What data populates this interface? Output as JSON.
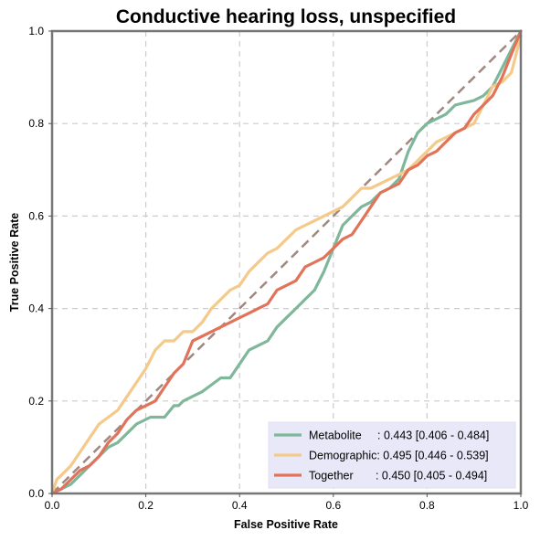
{
  "chart_data": {
    "type": "line",
    "title": "Conductive hearing loss, unspecified",
    "xlabel": "False Positive Rate",
    "ylabel": "True Positive Rate",
    "xlim": [
      0,
      1
    ],
    "ylim": [
      0,
      1
    ],
    "x_ticks": [
      "0.0",
      "0.2",
      "0.4",
      "0.6",
      "0.8",
      "1.0"
    ],
    "y_ticks": [
      "0.0",
      "0.2",
      "0.4",
      "0.6",
      "0.8",
      "1.0"
    ],
    "grid": true,
    "legend_position": "bottom-right",
    "diagonal": {
      "x": [
        0,
        1
      ],
      "y": [
        0,
        1
      ],
      "color": "#a08880"
    },
    "series": [
      {
        "name": "Metabolite",
        "label": "Metabolite     : 0.443 [0.406 - 0.484]",
        "color": "#7fb79a",
        "x": [
          0,
          0.02,
          0.04,
          0.06,
          0.08,
          0.1,
          0.12,
          0.14,
          0.16,
          0.18,
          0.2,
          0.21,
          0.22,
          0.24,
          0.26,
          0.27,
          0.28,
          0.3,
          0.32,
          0.34,
          0.36,
          0.38,
          0.4,
          0.42,
          0.44,
          0.46,
          0.48,
          0.5,
          0.52,
          0.54,
          0.56,
          0.58,
          0.6,
          0.62,
          0.64,
          0.66,
          0.68,
          0.7,
          0.72,
          0.74,
          0.76,
          0.78,
          0.8,
          0.82,
          0.84,
          0.86,
          0.88,
          0.9,
          0.92,
          0.94,
          0.96,
          0.98,
          1.0
        ],
        "y": [
          0,
          0.01,
          0.02,
          0.04,
          0.06,
          0.08,
          0.1,
          0.11,
          0.13,
          0.15,
          0.16,
          0.165,
          0.165,
          0.165,
          0.19,
          0.19,
          0.2,
          0.21,
          0.22,
          0.235,
          0.25,
          0.25,
          0.28,
          0.31,
          0.32,
          0.33,
          0.36,
          0.38,
          0.4,
          0.42,
          0.44,
          0.48,
          0.53,
          0.58,
          0.6,
          0.62,
          0.63,
          0.65,
          0.66,
          0.68,
          0.74,
          0.78,
          0.8,
          0.81,
          0.82,
          0.84,
          0.845,
          0.85,
          0.86,
          0.88,
          0.92,
          0.96,
          1.0
        ]
      },
      {
        "name": "Demographic",
        "label": "Demographic: 0.495 [0.446 - 0.539]",
        "color": "#f4c98a",
        "x": [
          0,
          0.01,
          0.02,
          0.04,
          0.06,
          0.08,
          0.1,
          0.12,
          0.14,
          0.16,
          0.18,
          0.2,
          0.22,
          0.24,
          0.26,
          0.28,
          0.3,
          0.32,
          0.34,
          0.36,
          0.38,
          0.4,
          0.42,
          0.44,
          0.46,
          0.48,
          0.5,
          0.52,
          0.54,
          0.56,
          0.58,
          0.6,
          0.62,
          0.64,
          0.66,
          0.68,
          0.7,
          0.72,
          0.74,
          0.76,
          0.78,
          0.8,
          0.82,
          0.84,
          0.86,
          0.88,
          0.9,
          0.92,
          0.94,
          0.96,
          0.98,
          1.0
        ],
        "y": [
          0,
          0.03,
          0.04,
          0.06,
          0.09,
          0.12,
          0.15,
          0.165,
          0.18,
          0.21,
          0.24,
          0.27,
          0.31,
          0.33,
          0.33,
          0.35,
          0.35,
          0.37,
          0.4,
          0.42,
          0.44,
          0.45,
          0.48,
          0.5,
          0.52,
          0.53,
          0.55,
          0.57,
          0.58,
          0.59,
          0.6,
          0.61,
          0.62,
          0.64,
          0.66,
          0.66,
          0.67,
          0.68,
          0.69,
          0.7,
          0.72,
          0.74,
          0.76,
          0.77,
          0.78,
          0.79,
          0.8,
          0.84,
          0.88,
          0.89,
          0.91,
          0.99
        ]
      },
      {
        "name": "Together",
        "label": "Together       : 0.450 [0.405 - 0.494]",
        "color": "#e0735a",
        "x": [
          0,
          0.02,
          0.04,
          0.06,
          0.08,
          0.1,
          0.12,
          0.14,
          0.16,
          0.18,
          0.2,
          0.22,
          0.24,
          0.26,
          0.28,
          0.3,
          0.32,
          0.34,
          0.36,
          0.38,
          0.4,
          0.42,
          0.44,
          0.46,
          0.48,
          0.5,
          0.52,
          0.54,
          0.56,
          0.58,
          0.6,
          0.62,
          0.64,
          0.66,
          0.68,
          0.7,
          0.72,
          0.74,
          0.76,
          0.78,
          0.8,
          0.82,
          0.84,
          0.86,
          0.88,
          0.9,
          0.92,
          0.94,
          0.96,
          0.98,
          1.0
        ],
        "y": [
          0,
          0.01,
          0.03,
          0.05,
          0.06,
          0.08,
          0.11,
          0.13,
          0.16,
          0.18,
          0.19,
          0.2,
          0.23,
          0.26,
          0.28,
          0.33,
          0.34,
          0.35,
          0.36,
          0.37,
          0.38,
          0.39,
          0.4,
          0.41,
          0.44,
          0.45,
          0.46,
          0.49,
          0.5,
          0.51,
          0.53,
          0.55,
          0.56,
          0.59,
          0.62,
          0.65,
          0.66,
          0.67,
          0.7,
          0.71,
          0.73,
          0.74,
          0.76,
          0.78,
          0.79,
          0.82,
          0.84,
          0.86,
          0.9,
          0.95,
          1.0
        ]
      }
    ]
  }
}
